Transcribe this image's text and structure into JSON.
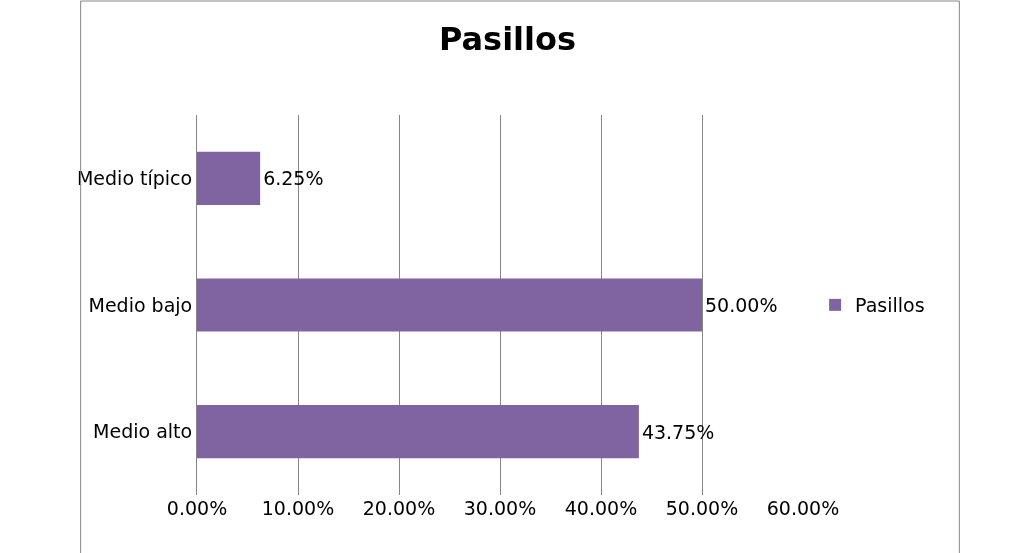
{
  "chart_data": {
    "type": "bar",
    "title": "Pasillos",
    "orientation": "horizontal",
    "categories": [
      "Medio típico",
      "Medio bajo",
      "Medio alto"
    ],
    "series": [
      {
        "name": "Pasillos",
        "color": "#8064a2",
        "values": [
          6.25,
          50,
          43.75
        ],
        "value_labels": [
          "6.25%",
          "50.00%",
          "43.75%"
        ]
      }
    ],
    "xlim": [
      0,
      60
    ],
    "xticks": [
      {
        "value": 0,
        "label": "0.00%"
      },
      {
        "value": 10,
        "label": "10.00%"
      },
      {
        "value": 20,
        "label": "20.00%"
      },
      {
        "value": 30,
        "label": "30.00%"
      },
      {
        "value": 40,
        "label": "40.00%"
      },
      {
        "value": 50,
        "label": "50.00%"
      },
      {
        "value": 60,
        "label": "60.00%"
      }
    ],
    "grid": "x",
    "legend": "right"
  }
}
